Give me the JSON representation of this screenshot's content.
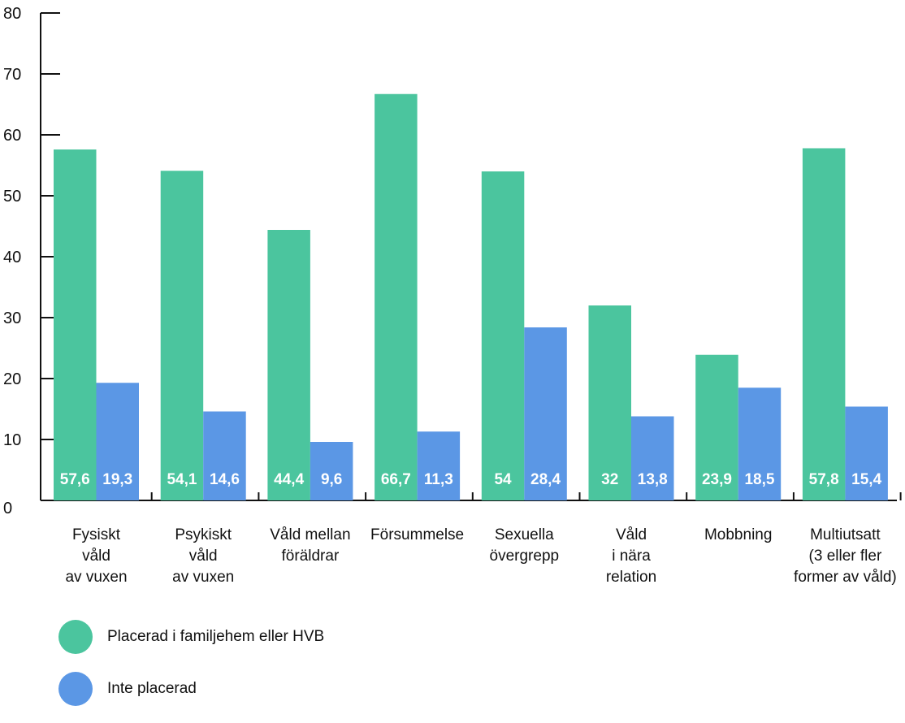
{
  "chart_data": {
    "type": "bar",
    "categories": [
      [
        "Fysiskt",
        "våld",
        "av vuxen"
      ],
      [
        "Psykiskt",
        "våld",
        "av vuxen"
      ],
      [
        "Våld mellan",
        "föräldrar"
      ],
      [
        "Försummelse"
      ],
      [
        "Sexuella",
        "övergrepp"
      ],
      [
        "Våld",
        "i nära",
        "relation"
      ],
      [
        "Mobbning"
      ],
      [
        "Multiutsatt",
        "(3 eller fler",
        "former av våld)"
      ]
    ],
    "series": [
      {
        "name": "Placerad i familjehem eller HVB",
        "color": "#4bc59e",
        "values": [
          57.6,
          54.1,
          44.4,
          66.7,
          54,
          32,
          23.9,
          57.8
        ],
        "labels": [
          "57,6",
          "54,1",
          "44,4",
          "66,7",
          "54",
          "32",
          "23,9",
          "57,8"
        ]
      },
      {
        "name": "Inte placerad",
        "color": "#5b97e5",
        "values": [
          19.3,
          14.6,
          9.6,
          11.3,
          28.4,
          13.8,
          18.5,
          15.4
        ],
        "labels": [
          "19,3",
          "14,6",
          "9,6",
          "11,3",
          "28,4",
          "13,8",
          "18,5",
          "15,4"
        ]
      }
    ],
    "yticks": [
      "0",
      "10",
      "20",
      "30",
      "40",
      "50",
      "60",
      "70",
      "80"
    ],
    "ylim": [
      0,
      80
    ],
    "grid": false,
    "legend_position": "bottom-left"
  }
}
